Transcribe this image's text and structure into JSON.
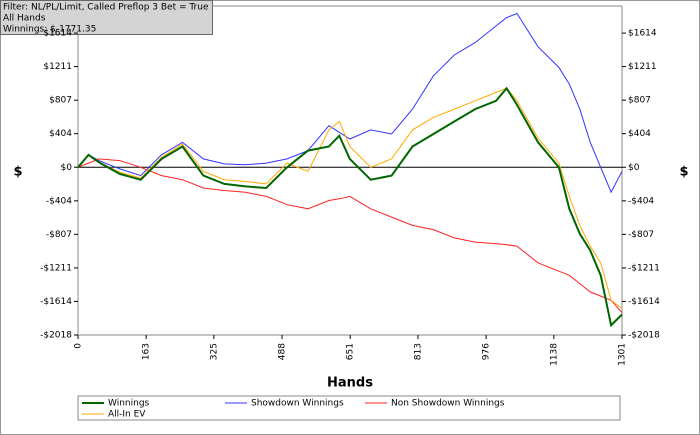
{
  "chart_data": {
    "type": "line",
    "filter_lines": [
      "Filter: NL/PL/Limit, Called Preflop 3 Bet = True",
      "All Hands",
      "Winnings: $-1771.35"
    ],
    "xlabel": "Hands",
    "ylabel": "$",
    "x": [
      0,
      25,
      50,
      100,
      150,
      200,
      250,
      300,
      350,
      400,
      450,
      500,
      550,
      600,
      625,
      650,
      700,
      750,
      800,
      850,
      900,
      950,
      1000,
      1025,
      1050,
      1100,
      1150,
      1175,
      1200,
      1225,
      1250,
      1275,
      1301
    ],
    "series": [
      {
        "name": "Winnings",
        "color": "#006600",
        "values": [
          0,
          150,
          60,
          -80,
          -150,
          100,
          250,
          -100,
          -200,
          -230,
          -250,
          0,
          200,
          250,
          380,
          100,
          -150,
          -100,
          250,
          400,
          550,
          700,
          800,
          950,
          750,
          300,
          0,
          -500,
          -800,
          -1000,
          -1300,
          -1900,
          -1771
        ]
      },
      {
        "name": "Showdown Winnings",
        "color": "#3333ff",
        "values": [
          0,
          150,
          80,
          -20,
          -100,
          150,
          300,
          100,
          40,
          30,
          50,
          100,
          200,
          500,
          420,
          340,
          450,
          400,
          700,
          1100,
          1350,
          1500,
          1700,
          1800,
          1850,
          1450,
          1200,
          1000,
          700,
          300,
          0,
          -300,
          -50
        ]
      },
      {
        "name": "Non Showdown Winnings",
        "color": "#ff2222",
        "values": [
          0,
          50,
          100,
          80,
          0,
          -100,
          -150,
          -250,
          -280,
          -300,
          -350,
          -450,
          -500,
          -400,
          -380,
          -350,
          -500,
          -600,
          -700,
          -750,
          -850,
          -900,
          -920,
          -930,
          -950,
          -1150,
          -1250,
          -1300,
          -1400,
          -1500,
          -1550,
          -1600,
          -1750
        ]
      },
      {
        "name": "All-In EV",
        "color": "#ffaa00",
        "values": [
          0,
          150,
          60,
          -60,
          -130,
          120,
          280,
          -50,
          -150,
          -170,
          -200,
          50,
          -50,
          450,
          550,
          250,
          0,
          100,
          450,
          600,
          700,
          800,
          900,
          950,
          800,
          350,
          50,
          -350,
          -700,
          -950,
          -1150,
          -1600,
          -1700
        ]
      }
    ],
    "xlim": [
      0,
      1301
    ],
    "xticks": [
      0,
      163,
      325,
      488,
      651,
      813,
      976,
      1138,
      1301
    ],
    "ylim": [
      -2018,
      1940
    ],
    "yticks": [
      {
        "value": -2018,
        "label": "-$2018"
      },
      {
        "value": -1614,
        "label": "-$1614"
      },
      {
        "value": -1211,
        "label": "-$1211"
      },
      {
        "value": -807,
        "label": "-$807"
      },
      {
        "value": -404,
        "label": "-$404"
      },
      {
        "value": 0,
        "label": "$0"
      },
      {
        "value": 404,
        "label": "$404"
      },
      {
        "value": 807,
        "label": "$807"
      },
      {
        "value": 1211,
        "label": "$1211"
      },
      {
        "value": 1614,
        "label": "$1614"
      }
    ]
  }
}
